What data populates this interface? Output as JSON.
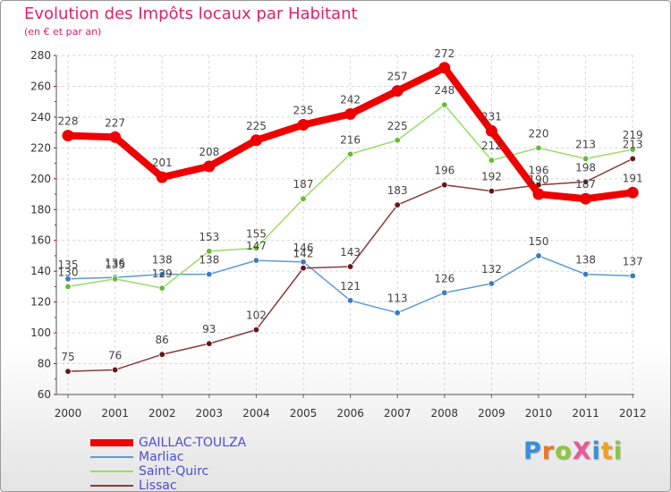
{
  "title": "Evolution des Impôts locaux par Habitant",
  "subtitle": "(en € et par an)",
  "logo": {
    "text": "ProXiti",
    "letters": [
      {
        "ch": "P",
        "color": "#3a8fd8"
      },
      {
        "ch": "r",
        "color": "#e8782a"
      },
      {
        "ch": "o",
        "color": "#8cc63e"
      },
      {
        "ch": "X",
        "color": "#e85a9a"
      },
      {
        "ch": "i",
        "color": "#3a8fd8"
      },
      {
        "ch": "t",
        "color": "#f0a020"
      },
      {
        "ch": "i",
        "color": "#8cc63e"
      }
    ]
  },
  "chart_data": {
    "type": "line",
    "title": "Evolution des Impôts locaux par Habitant",
    "subtitle": "(en € et par an)",
    "xlabel": "",
    "ylabel": "",
    "ylim": [
      60,
      280
    ],
    "yticks": [
      60,
      80,
      100,
      120,
      140,
      160,
      180,
      200,
      220,
      240,
      260,
      280
    ],
    "grid": true,
    "legend_position": "bottom-left",
    "categories": [
      "2000",
      "2001",
      "2002",
      "2003",
      "2004",
      "2005",
      "2006",
      "2007",
      "2008",
      "2009",
      "2010",
      "2011",
      "2012"
    ],
    "series": [
      {
        "name": "GAILLAC-TOULZA",
        "color": "#ee0000",
        "marker_color": "#ee0000",
        "thick": true,
        "values": [
          228,
          227,
          201,
          208,
          225,
          235,
          242,
          257,
          272,
          231,
          190,
          187,
          191
        ],
        "labels": [
          "228",
          "227",
          "201",
          "208",
          "225",
          "235",
          "242",
          "257",
          "272",
          "231",
          "190",
          "187",
          "191"
        ]
      },
      {
        "name": "Marliac",
        "color": "#5b9bd5",
        "marker_color": "#3a7cc0",
        "thick": false,
        "values": [
          135,
          136,
          138,
          138,
          147,
          146,
          121,
          113,
          126,
          132,
          150,
          138,
          137
        ],
        "labels": [
          "135",
          "136",
          "138",
          "138",
          "147",
          "146",
          "121",
          "113",
          "126",
          "132",
          "150",
          "138",
          "137"
        ]
      },
      {
        "name": "Saint-Quirc",
        "color": "#99dd66",
        "marker_color": "#66bb33",
        "thick": false,
        "values": [
          130,
          135,
          129,
          153,
          155,
          187,
          216,
          225,
          248,
          212,
          220,
          213,
          219
        ],
        "labels": [
          "130",
          "135",
          "129",
          "153",
          "155",
          "187",
          "216",
          "225",
          "248",
          "212",
          "220",
          "213",
          "219"
        ]
      },
      {
        "name": "Lissac",
        "color": "#8b3a3a",
        "marker_color": "#661515",
        "thick": false,
        "values": [
          75,
          76,
          86,
          93,
          102,
          142,
          143,
          183,
          196,
          192,
          196,
          198,
          213
        ],
        "labels": [
          "75",
          "76",
          "86",
          "93",
          "102",
          "142",
          "143",
          "183",
          "196",
          "192",
          "196",
          "198",
          "213"
        ]
      }
    ]
  }
}
